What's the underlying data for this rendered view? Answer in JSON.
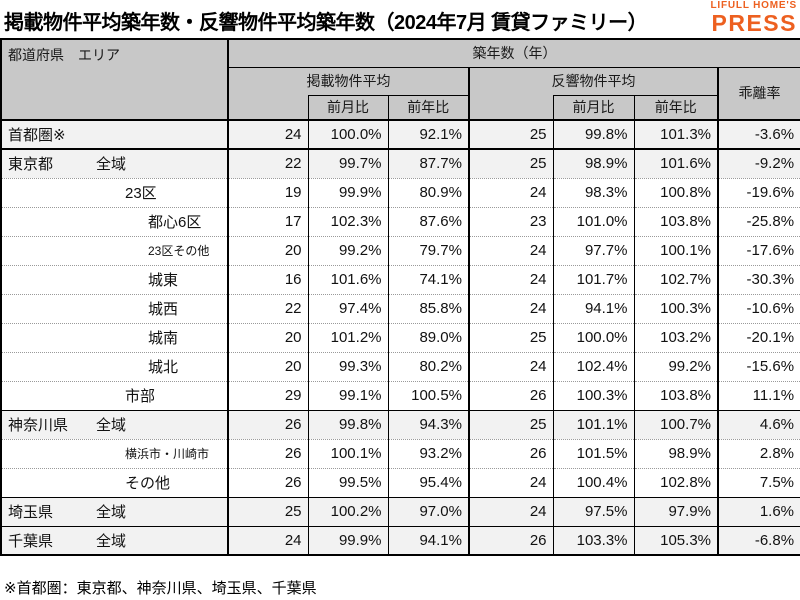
{
  "title": "掲載物件平均築年数・反響物件平均築年数（2024年7月 賃貸ファミリー）",
  "logo": {
    "top": "LIFULL HOME'S",
    "bottom": "PRESS",
    "color": "#ED6020"
  },
  "table": {
    "header": {
      "area_col": "都道府県　エリア",
      "year_label": "築年数（年）",
      "listed_group": "掲載物件平均",
      "response_group": "反響物件平均",
      "deviation": "乖離率",
      "mom": "前月比",
      "yoy": "前年比"
    }
  },
  "footnote": "※首都圏：東京都、神奈川県、埼玉県、千葉県",
  "chart_data": {
    "type": "table",
    "title": "掲載物件平均築年数・反響物件平均築年数（2024年7月 賃貸ファミリー）",
    "column_groups": [
      "築年数（年）"
    ],
    "columns": [
      "都道府県 エリア",
      "掲載物件平均",
      "掲載 前月比",
      "掲載 前年比",
      "反響物件平均",
      "反響 前月比",
      "反響 前年比",
      "乖離率"
    ],
    "rows": [
      {
        "pref": "首都圏※",
        "area": "",
        "indent": 1,
        "small": false,
        "listed_age": "24",
        "listed_mom": "100.0%",
        "listed_yoy": "92.1%",
        "resp_age": "25",
        "resp_mom": "99.8%",
        "resp_yoy": "101.3%",
        "deviation": "-3.6%",
        "shade": true,
        "separator": "thick"
      },
      {
        "pref": "東京都",
        "area": "全域",
        "indent": 1,
        "small": false,
        "listed_age": "22",
        "listed_mom": "99.7%",
        "listed_yoy": "87.7%",
        "resp_age": "25",
        "resp_mom": "98.9%",
        "resp_yoy": "101.6%",
        "deviation": "-9.2%",
        "shade": true,
        "separator": "thick"
      },
      {
        "pref": "",
        "area": "23区",
        "indent": 2,
        "small": false,
        "listed_age": "19",
        "listed_mom": "99.9%",
        "listed_yoy": "80.9%",
        "resp_age": "24",
        "resp_mom": "98.3%",
        "resp_yoy": "100.8%",
        "deviation": "-19.6%",
        "shade": false,
        "separator": "dotted"
      },
      {
        "pref": "",
        "area": "都心6区",
        "indent": 3,
        "small": false,
        "listed_age": "17",
        "listed_mom": "102.3%",
        "listed_yoy": "87.6%",
        "resp_age": "23",
        "resp_mom": "101.0%",
        "resp_yoy": "103.8%",
        "deviation": "-25.8%",
        "shade": false,
        "separator": "dotted"
      },
      {
        "pref": "",
        "area": "23区その他",
        "indent": 3,
        "small": true,
        "listed_age": "20",
        "listed_mom": "99.2%",
        "listed_yoy": "79.7%",
        "resp_age": "24",
        "resp_mom": "97.7%",
        "resp_yoy": "100.1%",
        "deviation": "-17.6%",
        "shade": false,
        "separator": "dotted"
      },
      {
        "pref": "",
        "area": "城東",
        "indent": 3,
        "small": false,
        "listed_age": "16",
        "listed_mom": "101.6%",
        "listed_yoy": "74.1%",
        "resp_age": "24",
        "resp_mom": "101.7%",
        "resp_yoy": "102.7%",
        "deviation": "-30.3%",
        "shade": false,
        "separator": "dotted"
      },
      {
        "pref": "",
        "area": "城西",
        "indent": 3,
        "small": false,
        "listed_age": "22",
        "listed_mom": "97.4%",
        "listed_yoy": "85.8%",
        "resp_age": "24",
        "resp_mom": "94.1%",
        "resp_yoy": "100.3%",
        "deviation": "-10.6%",
        "shade": false,
        "separator": "dotted"
      },
      {
        "pref": "",
        "area": "城南",
        "indent": 3,
        "small": false,
        "listed_age": "20",
        "listed_mom": "101.2%",
        "listed_yoy": "89.0%",
        "resp_age": "25",
        "resp_mom": "100.0%",
        "resp_yoy": "103.2%",
        "deviation": "-20.1%",
        "shade": false,
        "separator": "dotted"
      },
      {
        "pref": "",
        "area": "城北",
        "indent": 3,
        "small": false,
        "listed_age": "20",
        "listed_mom": "99.3%",
        "listed_yoy": "80.2%",
        "resp_age": "24",
        "resp_mom": "102.4%",
        "resp_yoy": "99.2%",
        "deviation": "-15.6%",
        "shade": false,
        "separator": "dotted"
      },
      {
        "pref": "",
        "area": "市部",
        "indent": 2,
        "small": false,
        "listed_age": "29",
        "listed_mom": "99.1%",
        "listed_yoy": "100.5%",
        "resp_age": "26",
        "resp_mom": "100.3%",
        "resp_yoy": "103.8%",
        "deviation": "11.1%",
        "shade": false,
        "separator": "dotted"
      },
      {
        "pref": "神奈川県",
        "area": "全域",
        "indent": 1,
        "small": false,
        "listed_age": "26",
        "listed_mom": "99.8%",
        "listed_yoy": "94.3%",
        "resp_age": "25",
        "resp_mom": "101.1%",
        "resp_yoy": "100.7%",
        "deviation": "4.6%",
        "shade": true,
        "separator": "solid"
      },
      {
        "pref": "",
        "area": "横浜市・川崎市",
        "indent": 2,
        "small": true,
        "listed_age": "26",
        "listed_mom": "100.1%",
        "listed_yoy": "93.2%",
        "resp_age": "26",
        "resp_mom": "101.5%",
        "resp_yoy": "98.9%",
        "deviation": "2.8%",
        "shade": false,
        "separator": "dotted"
      },
      {
        "pref": "",
        "area": "その他",
        "indent": 2,
        "small": false,
        "listed_age": "26",
        "listed_mom": "99.5%",
        "listed_yoy": "95.4%",
        "resp_age": "24",
        "resp_mom": "100.4%",
        "resp_yoy": "102.8%",
        "deviation": "7.5%",
        "shade": false,
        "separator": "dotted"
      },
      {
        "pref": "埼玉県",
        "area": "全域",
        "indent": 1,
        "small": false,
        "listed_age": "25",
        "listed_mom": "100.2%",
        "listed_yoy": "97.0%",
        "resp_age": "24",
        "resp_mom": "97.5%",
        "resp_yoy": "97.9%",
        "deviation": "1.6%",
        "shade": true,
        "separator": "solid"
      },
      {
        "pref": "千葉県",
        "area": "全域",
        "indent": 1,
        "small": false,
        "listed_age": "24",
        "listed_mom": "99.9%",
        "listed_yoy": "94.1%",
        "resp_age": "26",
        "resp_mom": "103.3%",
        "resp_yoy": "105.3%",
        "deviation": "-6.8%",
        "shade": true,
        "separator": "solid"
      }
    ]
  }
}
